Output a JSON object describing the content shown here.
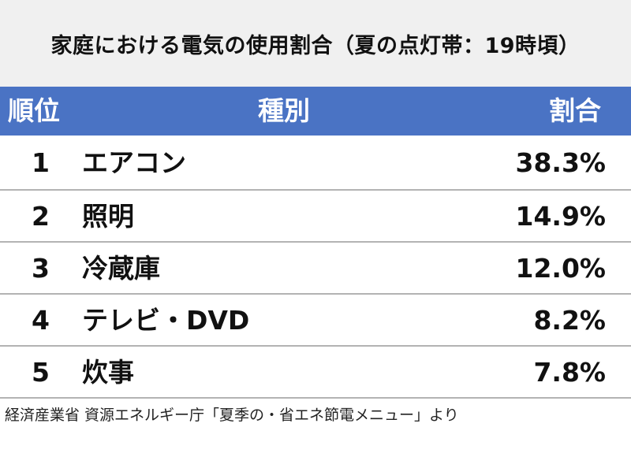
{
  "title": "家庭における電気の使用割合（夏の点灯帯：19時頃）",
  "header": {
    "rank": "順位",
    "type": "種別",
    "share": "割合"
  },
  "rows": [
    {
      "rank": "1",
      "name": "エアコン",
      "share": "38.3%"
    },
    {
      "rank": "2",
      "name": "照明",
      "share": "14.9%"
    },
    {
      "rank": "3",
      "name": "冷蔵庫",
      "share": "12.0%"
    },
    {
      "rank": "4",
      "name": "テレビ・DVD",
      "share": "8.2%"
    },
    {
      "rank": "5",
      "name": "炊事",
      "share": "7.8%"
    }
  ],
  "source": "経済産業省 資源エネルギー庁「夏季の・省エネ節電メニュー」より",
  "colors": {
    "header_bg": "#4a73c4",
    "title_bg": "#f0f0f0",
    "divider": "#b3b3b3"
  }
}
